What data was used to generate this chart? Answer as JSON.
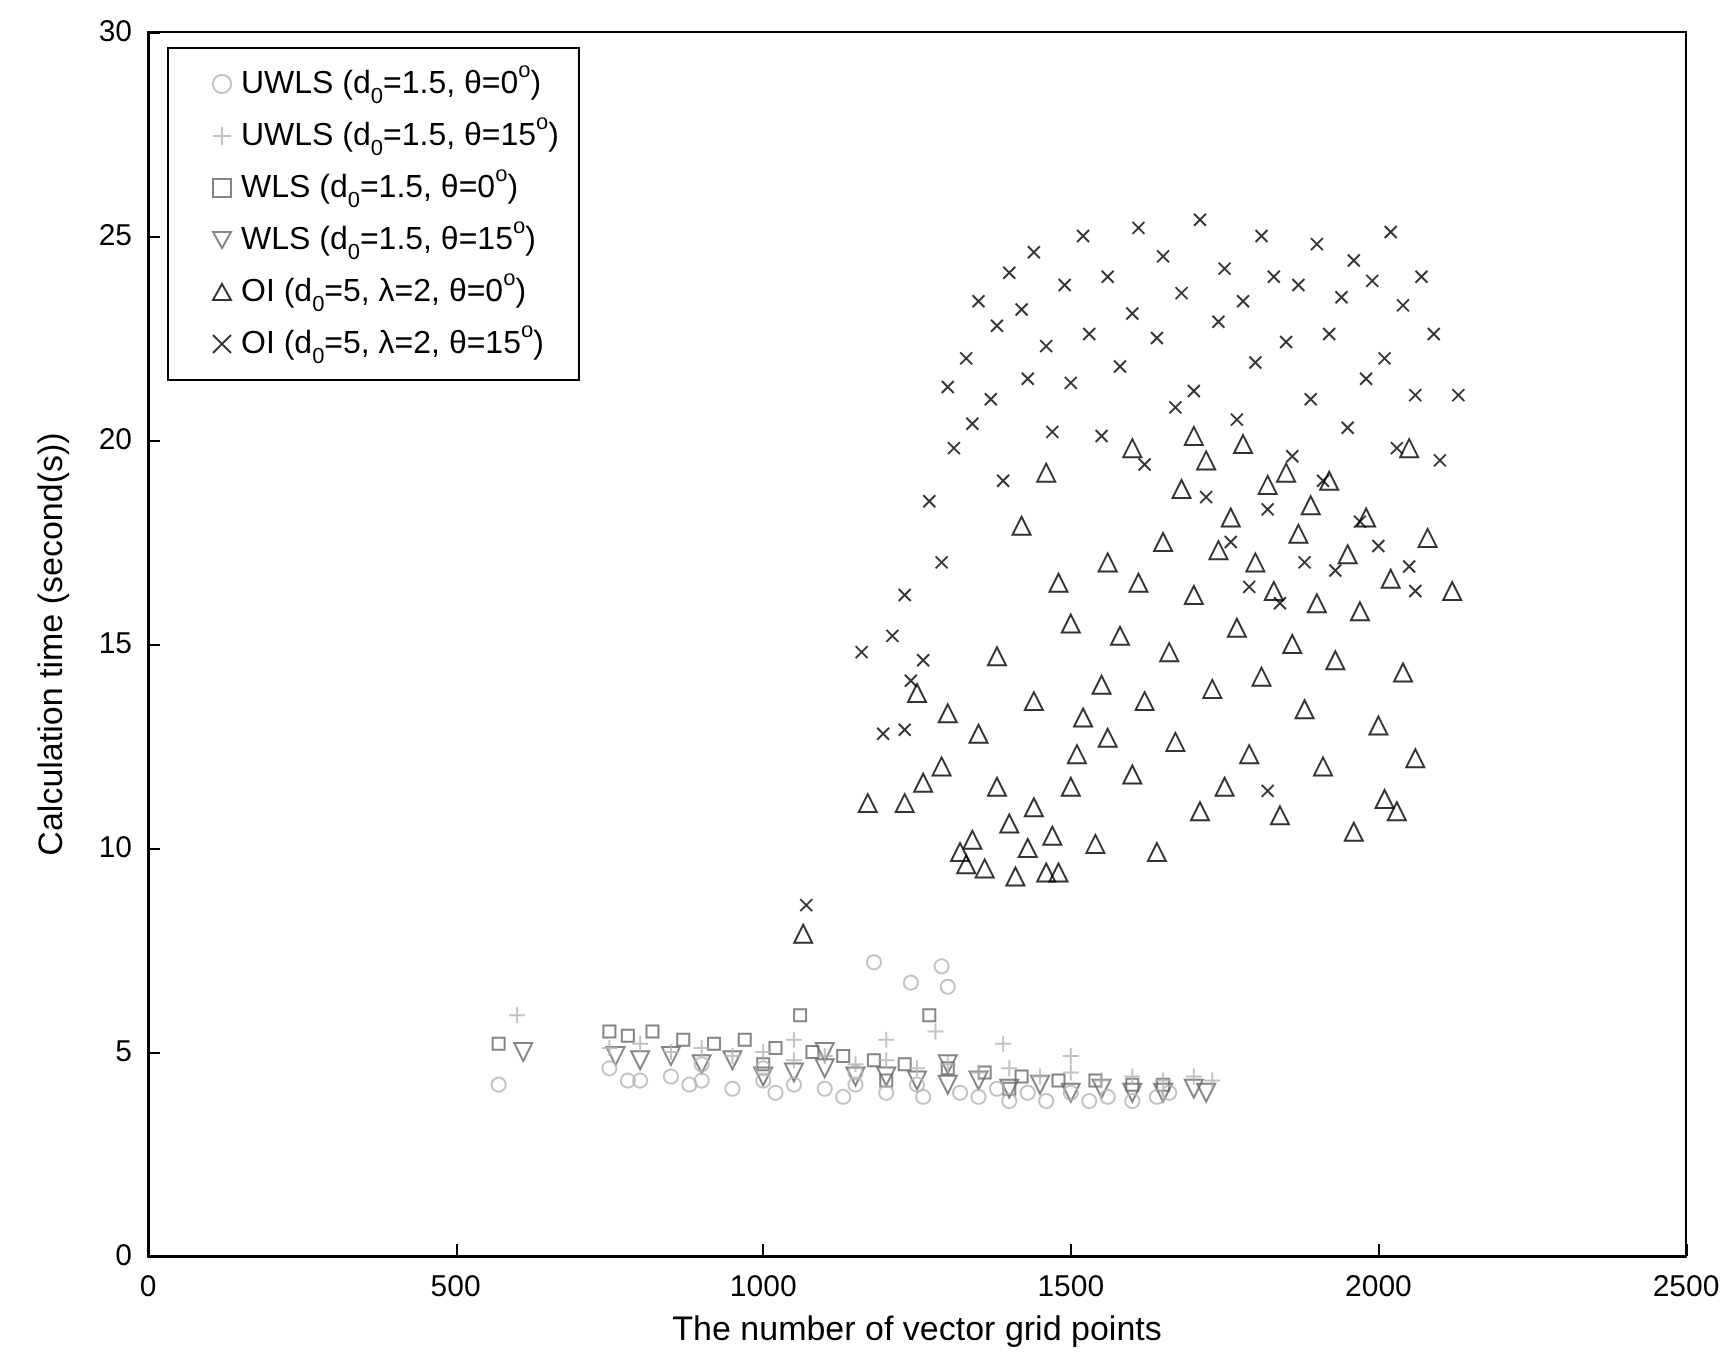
{
  "chart_data": {
    "type": "scatter",
    "xlabel": "The number of vector grid points",
    "ylabel": "Calculation time (second(s))",
    "xlim": [
      0,
      2500
    ],
    "xticks": [
      0,
      500,
      1000,
      1500,
      2000,
      2500
    ],
    "ylim": [
      0,
      30
    ],
    "yticks": [
      0,
      5,
      10,
      15,
      20,
      25,
      30
    ],
    "grid": false,
    "legend": "top left",
    "series": [
      {
        "name": "UWLS (d$_{0}$=1.5, θ=0$^{o}$)",
        "color": "#b3b3b3",
        "marker": "circle",
        "x": [
          570,
          750,
          780,
          800,
          850,
          880,
          900,
          950,
          1000,
          1020,
          1050,
          1100,
          1130,
          1150,
          1180,
          1200,
          1240,
          1260,
          1290,
          1300,
          1320,
          1350,
          1380,
          1400,
          1430,
          1460,
          1500,
          1530,
          1560,
          1600,
          1640,
          1660,
          1250,
          1000,
          900,
          1150
        ],
        "values": [
          4.2,
          4.6,
          4.3,
          4.3,
          4.4,
          4.2,
          4.3,
          4.1,
          4.3,
          4.0,
          4.2,
          4.1,
          3.9,
          4.2,
          7.2,
          4.0,
          6.7,
          3.9,
          7.1,
          6.6,
          4.0,
          3.9,
          4.1,
          3.8,
          4.0,
          3.8,
          4.0,
          3.8,
          3.9,
          3.8,
          3.9,
          4.0,
          4.2,
          4.6,
          4.7,
          4.5
        ]
      },
      {
        "name": "UWLS (d$_{0}$=1.5, θ=15$^{o}$)",
        "color": "#b3b3b3",
        "marker": "plus",
        "x": [
          600,
          750,
          800,
          850,
          900,
          950,
          1000,
          1050,
          1100,
          1150,
          1200,
          1250,
          1280,
          1300,
          1350,
          1400,
          1450,
          1500,
          1550,
          1600,
          1650,
          1700,
          1730,
          1390,
          1500,
          1200,
          1050
        ],
        "values": [
          5.9,
          5.1,
          5.2,
          5.0,
          5.1,
          4.9,
          5.0,
          4.8,
          4.9,
          4.7,
          4.8,
          4.6,
          5.5,
          4.7,
          4.5,
          4.6,
          4.4,
          4.5,
          4.3,
          4.4,
          4.3,
          4.4,
          4.3,
          5.2,
          4.9,
          5.3,
          5.3
        ]
      },
      {
        "name": "WLS (d$_{0}$=1.5, θ=0$^{o}$)",
        "color": "#666666",
        "marker": "square",
        "x": [
          570,
          750,
          780,
          820,
          870,
          920,
          970,
          1020,
          1060,
          1080,
          1130,
          1180,
          1230,
          1270,
          1300,
          1360,
          1420,
          1480,
          1540,
          1600,
          1650,
          1000,
          1200,
          1400
        ],
        "values": [
          5.2,
          5.5,
          5.4,
          5.5,
          5.3,
          5.2,
          5.3,
          5.1,
          5.9,
          5.0,
          4.9,
          4.8,
          4.7,
          5.9,
          4.6,
          4.5,
          4.4,
          4.3,
          4.3,
          4.2,
          4.2,
          4.7,
          4.3,
          4.1
        ]
      },
      {
        "name": "WLS (d$_{0}$=1.5, θ=15$^{o}$)",
        "color": "#666666",
        "marker": "triangle_down",
        "x": [
          610,
          760,
          800,
          850,
          900,
          950,
          1000,
          1050,
          1100,
          1150,
          1200,
          1250,
          1300,
          1350,
          1400,
          1450,
          1500,
          1550,
          1600,
          1650,
          1700,
          1720,
          1100,
          1300
        ],
        "values": [
          5.0,
          4.9,
          4.8,
          4.9,
          4.7,
          4.8,
          4.4,
          4.5,
          4.6,
          4.4,
          4.4,
          4.3,
          4.2,
          4.3,
          4.1,
          4.2,
          4.0,
          4.1,
          4.0,
          4.0,
          4.1,
          4.0,
          5.0,
          4.7
        ]
      },
      {
        "name": "OI (d$_{0}$=5, λ=2, θ=0$^{o}$)",
        "color": "#000000",
        "marker": "triangle",
        "x": [
          1065,
          1170,
          1230,
          1260,
          1290,
          1320,
          1330,
          1340,
          1360,
          1380,
          1400,
          1410,
          1430,
          1440,
          1460,
          1470,
          1480,
          1500,
          1510,
          1520,
          1540,
          1550,
          1560,
          1580,
          1600,
          1610,
          1620,
          1640,
          1650,
          1660,
          1670,
          1680,
          1700,
          1710,
          1720,
          1730,
          1740,
          1750,
          1760,
          1770,
          1780,
          1790,
          1800,
          1810,
          1820,
          1830,
          1840,
          1850,
          1860,
          1870,
          1880,
          1890,
          1900,
          1910,
          1920,
          1930,
          1950,
          1960,
          1970,
          1980,
          2000,
          2010,
          2020,
          2030,
          2040,
          2050,
          2060,
          2080,
          2120,
          1250,
          1380,
          1420,
          1460,
          1500,
          1560,
          1600,
          1700,
          1480,
          1350,
          1300,
          1440
        ],
        "values": [
          7.9,
          11.1,
          11.1,
          11.6,
          12.0,
          9.9,
          9.6,
          10.2,
          9.5,
          11.5,
          10.6,
          9.3,
          10.0,
          11.0,
          9.4,
          10.3,
          9.4,
          11.5,
          12.3,
          13.2,
          10.1,
          14.0,
          12.7,
          15.2,
          11.8,
          16.5,
          13.6,
          9.9,
          17.5,
          14.8,
          12.6,
          18.8,
          16.2,
          10.9,
          19.5,
          13.9,
          17.3,
          11.5,
          18.1,
          15.4,
          19.9,
          12.3,
          17.0,
          14.2,
          18.9,
          16.3,
          10.8,
          19.2,
          15.0,
          17.7,
          13.4,
          18.4,
          16.0,
          12.0,
          19.0,
          14.6,
          17.2,
          10.4,
          15.8,
          18.1,
          13.0,
          11.2,
          16.6,
          10.9,
          14.3,
          19.8,
          12.2,
          17.6,
          16.3,
          13.8,
          14.7,
          17.9,
          19.2,
          15.5,
          17.0,
          19.8,
          20.1,
          16.5,
          12.8,
          13.3,
          13.6
        ]
      },
      {
        "name": "OI (d$_{0}$=5, λ=2, θ=15$^{o}$)",
        "color": "#000000",
        "marker": "x",
        "x": [
          1070,
          1160,
          1210,
          1240,
          1260,
          1230,
          1270,
          1290,
          1300,
          1310,
          1330,
          1340,
          1350,
          1370,
          1380,
          1390,
          1400,
          1420,
          1430,
          1440,
          1460,
          1470,
          1490,
          1500,
          1520,
          1530,
          1550,
          1560,
          1580,
          1600,
          1610,
          1620,
          1640,
          1650,
          1670,
          1680,
          1700,
          1710,
          1720,
          1740,
          1750,
          1760,
          1770,
          1780,
          1790,
          1800,
          1810,
          1820,
          1830,
          1840,
          1850,
          1860,
          1870,
          1880,
          1890,
          1900,
          1910,
          1920,
          1930,
          1940,
          1950,
          1960,
          1970,
          1980,
          1990,
          2000,
          2010,
          2020,
          2030,
          2040,
          2050,
          2060,
          2070,
          2090,
          2130,
          2100,
          1230,
          1195,
          1820,
          2060
        ],
        "values": [
          8.6,
          14.8,
          15.2,
          14.1,
          14.6,
          16.2,
          18.5,
          17.0,
          21.3,
          19.8,
          22.0,
          20.4,
          23.4,
          21.0,
          22.8,
          19.0,
          24.1,
          23.2,
          21.5,
          24.6,
          22.3,
          20.2,
          23.8,
          21.4,
          25.0,
          22.6,
          20.1,
          24.0,
          21.8,
          23.1,
          25.2,
          19.4,
          22.5,
          24.5,
          20.8,
          23.6,
          21.2,
          25.4,
          18.6,
          22.9,
          24.2,
          17.5,
          20.5,
          23.4,
          16.4,
          21.9,
          25.0,
          18.3,
          24.0,
          16.0,
          22.4,
          19.6,
          23.8,
          17.0,
          21.0,
          24.8,
          19.0,
          22.6,
          16.8,
          23.5,
          20.3,
          24.4,
          18.0,
          21.5,
          23.9,
          17.4,
          22.0,
          25.1,
          19.8,
          23.3,
          16.9,
          21.1,
          24.0,
          22.6,
          21.1,
          19.5,
          12.9,
          12.8,
          11.4,
          16.3
        ]
      }
    ]
  }
}
